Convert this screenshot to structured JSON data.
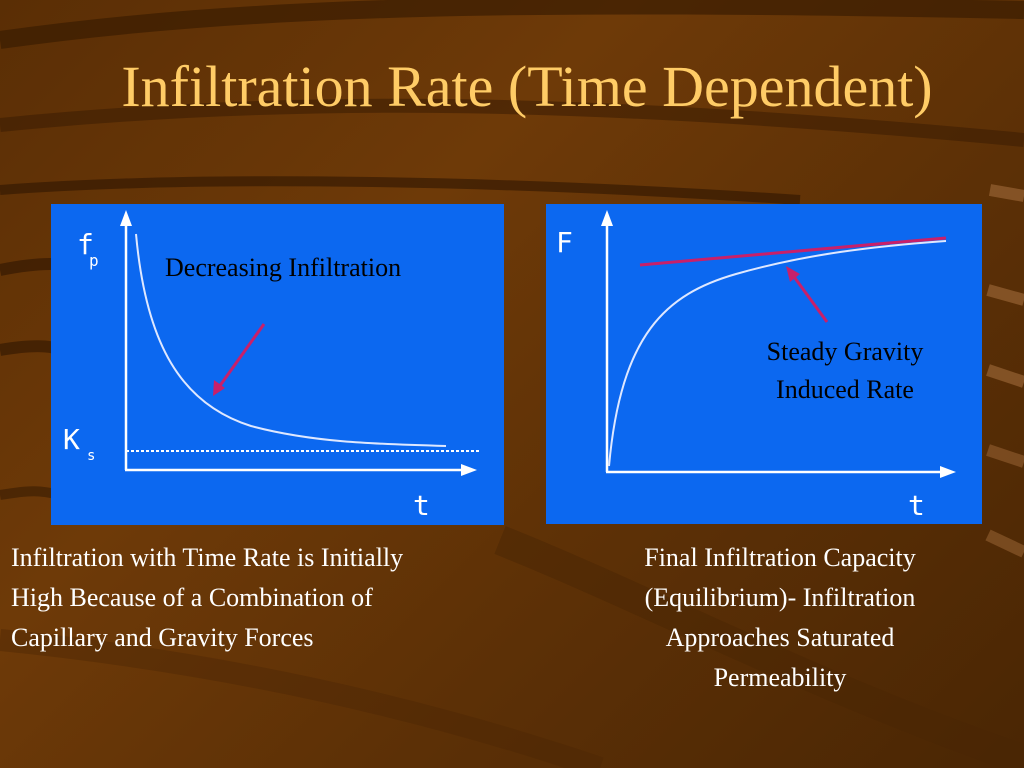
{
  "slide": {
    "title": "Infiltration Rate (Time Dependent)"
  },
  "left_graph": {
    "y_label": "f",
    "y_label_sub": "p",
    "baseline_label": "K",
    "baseline_label_sub": "s",
    "x_label": "t",
    "annotation": "Decreasing Infiltration"
  },
  "right_graph": {
    "y_label": "F",
    "x_label": "t",
    "annotation_line1": "Steady Gravity",
    "annotation_line2": "Induced  Rate"
  },
  "captions": {
    "left_lines": [
      "Infiltration with Time Rate is Initially",
      "High Because of a Combination of",
      "Capillary and Gravity Forces"
    ],
    "right_lines": [
      "Final Infiltration Capacity",
      "(Equilibrium)- Infiltration",
      "Approaches Saturated",
      "Permeability"
    ]
  },
  "colors": {
    "background": "#5a2e05",
    "title": "#ffcc66",
    "panel": "#0c68f0",
    "arrow": "#c8206a",
    "caption": "#ffffff"
  }
}
